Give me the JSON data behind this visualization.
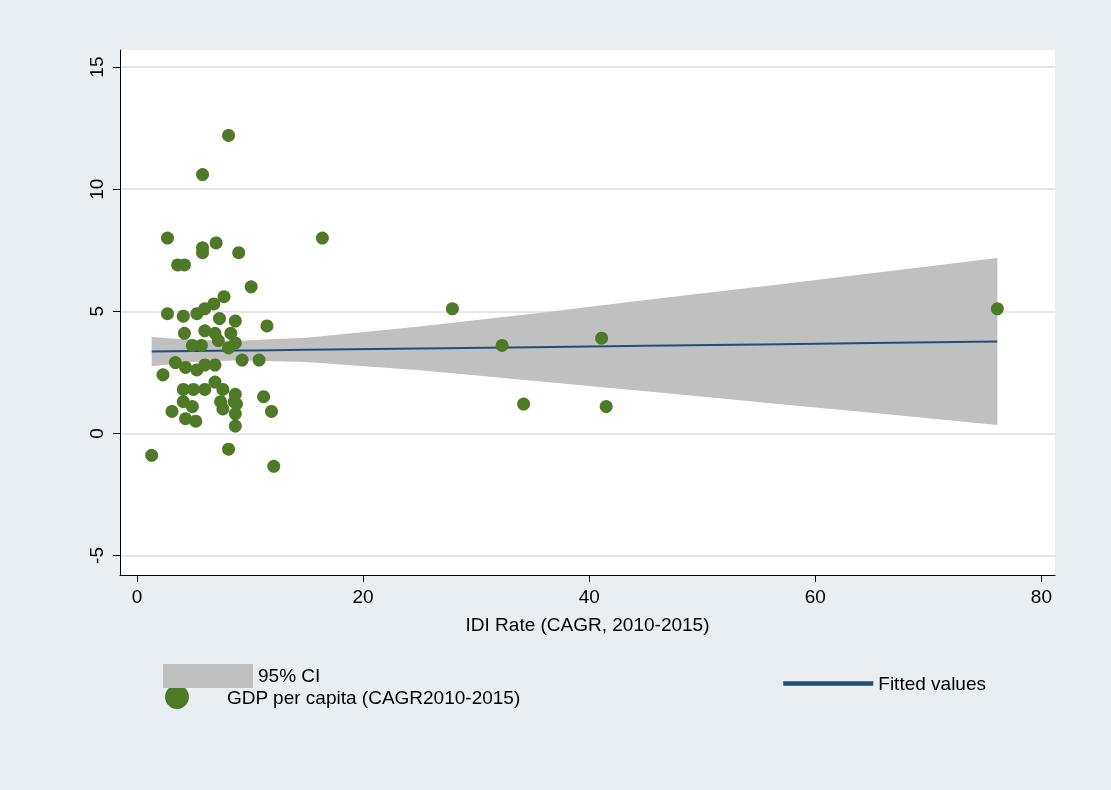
{
  "chart_data": {
    "type": "scatter",
    "xlabel": "IDI Rate (CAGR, 2010-2015)",
    "xlim": [
      -1.5,
      81.2
    ],
    "xticks": [
      0,
      20,
      40,
      60,
      80
    ],
    "ylim": [
      -5.8,
      15.7
    ],
    "yticks": [
      -5,
      0,
      5,
      10,
      15
    ],
    "grid": "y",
    "legend": "bottom",
    "marker": "circle",
    "annotations": [
      "95% CI"
    ],
    "series": [
      {
        "name": "GDP per capita (CAGR2010-2015)",
        "color": "#4e7a27",
        "x": [
          1.3,
          8.1,
          5.8,
          2.7,
          5.8,
          5.8,
          7.0,
          9.0,
          3.6,
          4.2,
          16.4,
          10.1,
          2.7,
          27.9,
          76.1,
          32.3,
          41.1,
          34.2,
          41.5,
          12.1,
          8.1,
          11.5,
          11.2,
          11.9,
          10.8,
          9.3,
          2.3,
          3.1,
          8.7,
          8.8,
          8.7,
          7.7,
          4.1,
          5.3,
          6.0,
          6.8,
          7.3,
          8.7,
          4.2,
          6.0,
          6.9,
          8.3,
          4.9,
          5.7,
          7.2,
          8.1,
          8.7,
          3.4,
          4.3,
          5.3,
          6.0,
          6.9,
          4.1,
          5.0,
          6.0,
          6.9,
          7.6,
          4.1,
          4.9,
          7.4,
          8.6,
          4.3,
          5.2,
          7.6,
          8.7
        ],
        "values": [
          -0.9,
          12.2,
          10.6,
          8.0,
          7.6,
          7.4,
          7.8,
          7.4,
          6.9,
          6.9,
          8.0,
          6.0,
          4.9,
          5.1,
          5.1,
          3.6,
          3.9,
          1.2,
          1.1,
          -1.35,
          -0.65,
          4.4,
          1.5,
          0.9,
          3.0,
          3.0,
          2.4,
          0.9,
          0.3,
          1.2,
          1.6,
          5.6,
          4.8,
          4.9,
          5.1,
          5.3,
          4.7,
          4.6,
          4.1,
          4.2,
          4.1,
          4.1,
          3.6,
          3.6,
          3.8,
          3.5,
          3.7,
          2.9,
          2.7,
          2.6,
          2.8,
          2.8,
          1.8,
          1.8,
          1.8,
          2.1,
          1.8,
          1.3,
          1.1,
          1.3,
          1.3,
          0.6,
          0.5,
          1.0,
          0.8
        ]
      },
      {
        "name": "Fitted values",
        "type": "line",
        "color": "#1f4e79",
        "marker": "none",
        "x": [
          1.3,
          5,
          9,
          15,
          25,
          35,
          45,
          55,
          65,
          76.1
        ],
        "values": [
          3.35,
          3.37,
          3.39,
          3.42,
          3.48,
          3.53,
          3.59,
          3.64,
          3.7,
          3.76
        ],
        "lower": [
          2.75,
          2.92,
          2.99,
          2.92,
          2.58,
          2.16,
          1.72,
          1.28,
          0.84,
          0.34
        ],
        "upper": [
          3.95,
          3.82,
          3.79,
          3.92,
          4.38,
          4.9,
          5.46,
          6.0,
          6.56,
          7.18
        ]
      }
    ]
  }
}
